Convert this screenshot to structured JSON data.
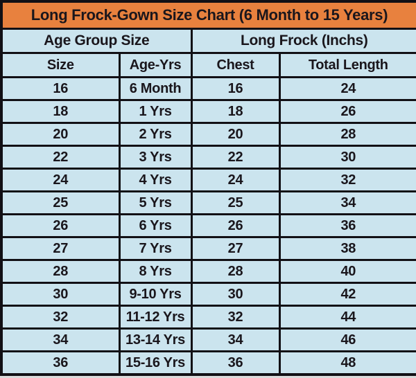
{
  "page": {
    "background_color": "#DBDBDB"
  },
  "colors": {
    "title_bar_bg": "#E8813E",
    "cell_bg": "#CBE4EE",
    "grid_border": "#121015",
    "text": "#1A161C"
  },
  "chart_data": {
    "type": "table",
    "title": "Long Frock-Gown Size Chart  (6 Month to 15 Years)",
    "column_groups": [
      {
        "label": "Age Group Size",
        "span": 2
      },
      {
        "label": "Long Frock (Inchs)",
        "span": 2
      }
    ],
    "columns": [
      "Size",
      "Age-Yrs",
      "Chest",
      "Total Length"
    ],
    "rows": [
      [
        "16",
        "6 Month",
        "16",
        "24"
      ],
      [
        "18",
        "1 Yrs",
        "18",
        "26"
      ],
      [
        "20",
        "2 Yrs",
        "20",
        "28"
      ],
      [
        "22",
        "3 Yrs",
        "22",
        "30"
      ],
      [
        "24",
        "4 Yrs",
        "24",
        "32"
      ],
      [
        "25",
        "5 Yrs",
        "25",
        "34"
      ],
      [
        "26",
        "6 Yrs",
        "26",
        "36"
      ],
      [
        "27",
        "7 Yrs",
        "27",
        "38"
      ],
      [
        "28",
        "8 Yrs",
        "28",
        "40"
      ],
      [
        "30",
        "9-10 Yrs",
        "30",
        "42"
      ],
      [
        "32",
        "11-12 Yrs",
        "32",
        "44"
      ],
      [
        "34",
        "13-14 Yrs",
        "34",
        "46"
      ],
      [
        "36",
        "15-16 Yrs",
        "36",
        "48"
      ]
    ]
  }
}
